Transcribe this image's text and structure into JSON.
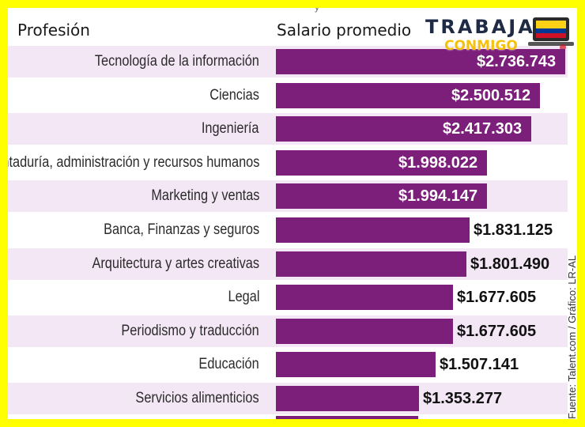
{
  "header": {
    "profession": "Profesión",
    "salary": "Salario promedio",
    "cut_text": "y"
  },
  "logo": {
    "word1": "TRABAJA",
    "word2": "CONMIGO",
    "icon": "laptop-flag-icon",
    "flag_colors": [
      "#fcd116",
      "#003893",
      "#ce1126"
    ]
  },
  "source_text": "Fuente: Talent.com / Gráfico: LR-AL",
  "colors": {
    "bar": "#7b1f7a",
    "stripe": "#f3e6f5",
    "border": "#ffff00"
  },
  "chart_data": {
    "type": "bar",
    "orientation": "horizontal",
    "title": "",
    "xlabel": "Salario promedio",
    "ylabel": "Profesión",
    "xlim": [
      0,
      2736743
    ],
    "grid": false,
    "legend": "none",
    "categories": [
      "Tecnología de la información",
      "Ciencias",
      "Ingeniería",
      "Contaduría, administración y recursos humanos",
      "Marketing y ventas",
      "Banca, Finanzas y seguros",
      "Arquitectura y artes creativas",
      "Legal",
      "Periodismo y traducción",
      "Educación",
      "Servicios alimenticios"
    ],
    "values": [
      2736743,
      2500512,
      2417303,
      1998022,
      1994147,
      1831125,
      1801490,
      1677605,
      1677605,
      1507141,
      1353277
    ],
    "labels": [
      "$2.736.743",
      "$2.500.512",
      "$2.417.303",
      "$1.998.022",
      "$1.994.147",
      "$1.831.125",
      "$1.801.490",
      "$1.677.605",
      "$1.677.605",
      "$1.507.141",
      "$1.353.277"
    ],
    "label_inside": [
      true,
      true,
      true,
      true,
      true,
      false,
      false,
      false,
      false,
      false,
      false
    ]
  }
}
